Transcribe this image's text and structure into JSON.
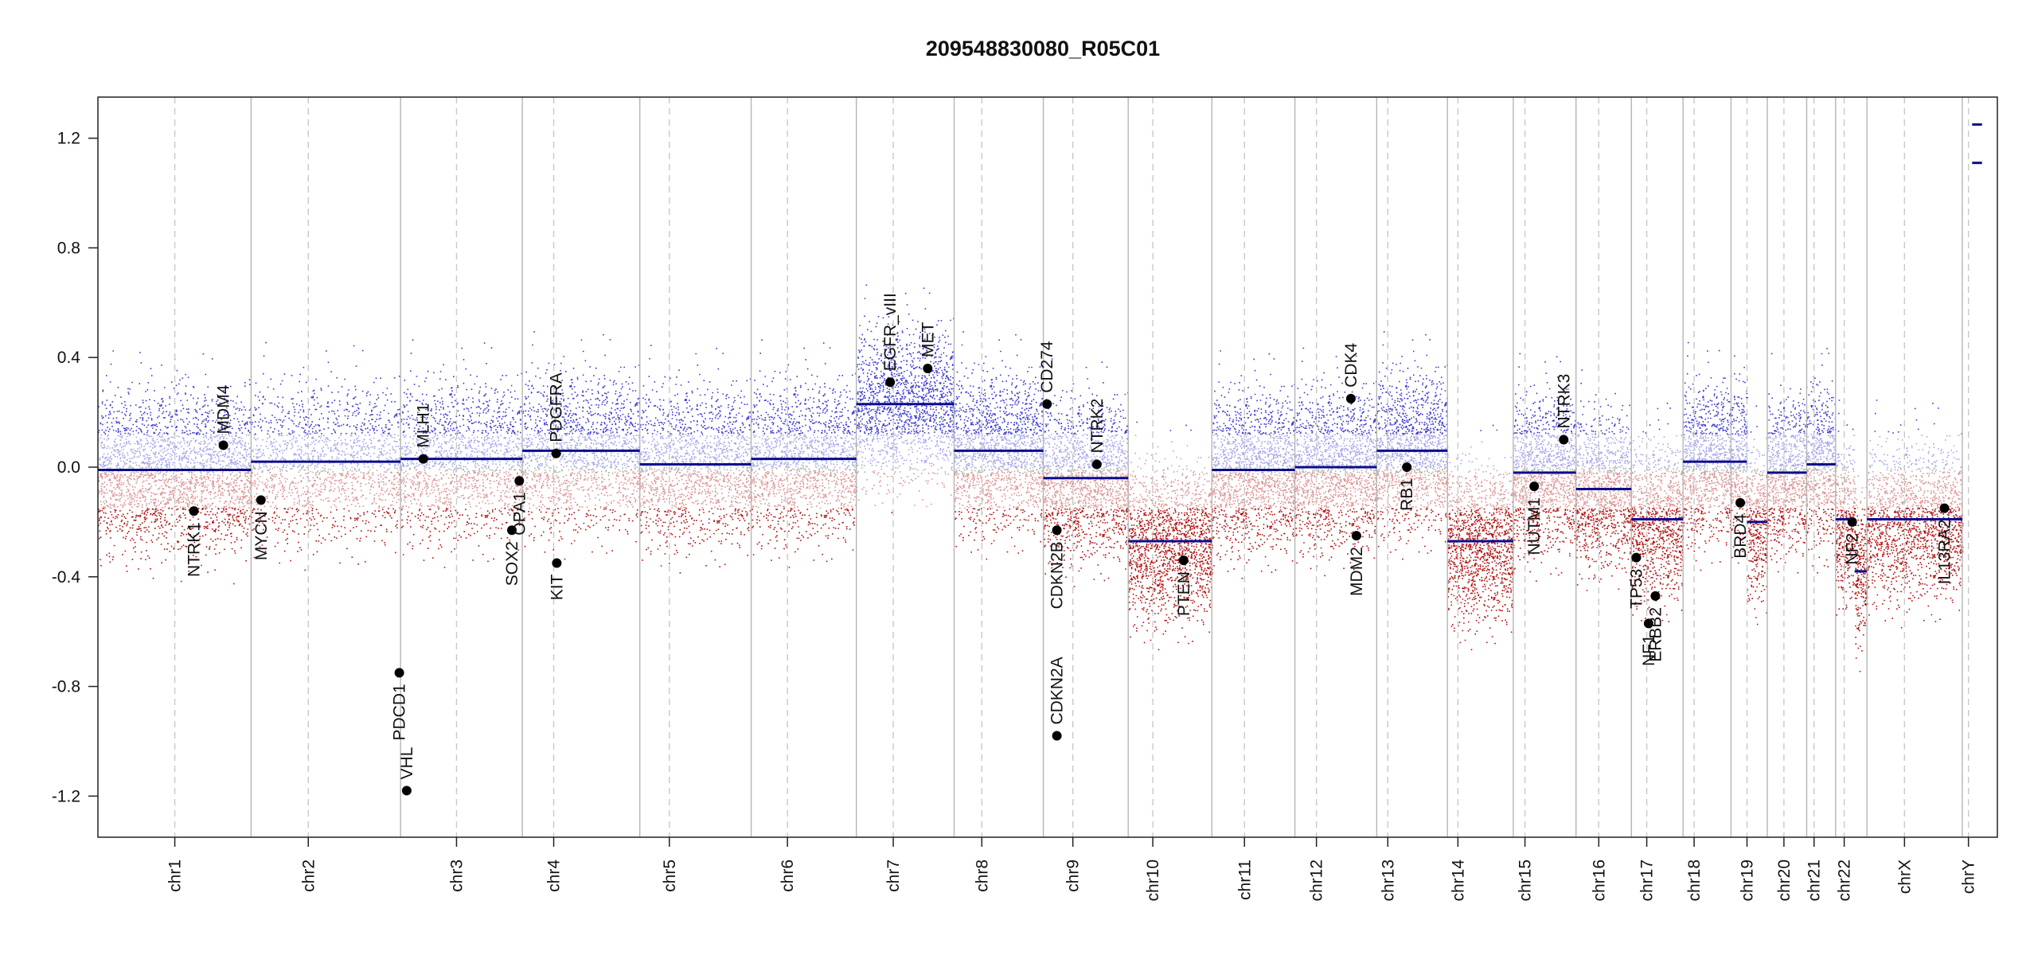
{
  "chart_data": {
    "type": "scatter",
    "title": "209548830080_R05C01",
    "xlabel": "",
    "ylabel": "",
    "ylim": [
      -1.35,
      1.35
    ],
    "yticks": [
      "1.2",
      "0.8",
      "0.4",
      "0.0",
      "-0.4",
      "-0.8",
      "-1.2"
    ],
    "ytick_values": [
      1.2,
      0.8,
      0.4,
      0.0,
      -0.4,
      -0.8,
      -1.2
    ],
    "grid": false,
    "colors": {
      "gain": "#3a3ad0",
      "loss": "#b01010",
      "neutral": "#a0a0a0",
      "segment": "#0b0b8c",
      "boundary": "#b5b5b5",
      "centromere": "#c8c8c8",
      "gene_point": "#000000"
    },
    "chromosomes": [
      {
        "name": "chr1",
        "start": 0,
        "end": 249,
        "centromere": 125,
        "segments": [
          {
            "from": 0,
            "to": 249,
            "value": -0.01
          }
        ]
      },
      {
        "name": "chr2",
        "start": 249,
        "end": 492,
        "centromere": 342,
        "segments": [
          {
            "from": 249,
            "to": 492,
            "value": 0.02
          }
        ]
      },
      {
        "name": "chr3",
        "start": 492,
        "end": 690,
        "centromere": 583,
        "segments": [
          {
            "from": 492,
            "to": 690,
            "value": 0.03
          }
        ]
      },
      {
        "name": "chr4",
        "start": 690,
        "end": 881,
        "centromere": 741,
        "segments": [
          {
            "from": 690,
            "to": 881,
            "value": 0.06
          }
        ]
      },
      {
        "name": "chr5",
        "start": 881,
        "end": 1062,
        "centromere": 929,
        "segments": [
          {
            "from": 881,
            "to": 1062,
            "value": 0.01
          }
        ]
      },
      {
        "name": "chr6",
        "start": 1062,
        "end": 1233,
        "centromere": 1121,
        "segments": [
          {
            "from": 1062,
            "to": 1233,
            "value": 0.03
          }
        ]
      },
      {
        "name": "chr7",
        "start": 1233,
        "end": 1392,
        "centromere": 1293,
        "segments": [
          {
            "from": 1233,
            "to": 1392,
            "value": 0.23
          }
        ]
      },
      {
        "name": "chr8",
        "start": 1392,
        "end": 1537,
        "centromere": 1437,
        "segments": [
          {
            "from": 1392,
            "to": 1537,
            "value": 0.06
          }
        ]
      },
      {
        "name": "chr9",
        "start": 1537,
        "end": 1675,
        "centromere": 1585,
        "segments": [
          {
            "from": 1537,
            "to": 1675,
            "value": -0.04
          }
        ]
      },
      {
        "name": "chr10",
        "start": 1675,
        "end": 1811,
        "centromere": 1715,
        "segments": [
          {
            "from": 1675,
            "to": 1811,
            "value": -0.27
          }
        ]
      },
      {
        "name": "chr11",
        "start": 1811,
        "end": 1946,
        "centromere": 1864,
        "segments": [
          {
            "from": 1811,
            "to": 1946,
            "value": -0.01
          }
        ]
      },
      {
        "name": "chr12",
        "start": 1946,
        "end": 2079,
        "centromere": 1981,
        "segments": [
          {
            "from": 1946,
            "to": 2079,
            "value": 0.0
          }
        ]
      },
      {
        "name": "chr13",
        "start": 2079,
        "end": 2194,
        "centromere": 2097,
        "segments": [
          {
            "from": 2079,
            "to": 2194,
            "value": 0.06
          }
        ]
      },
      {
        "name": "chr14",
        "start": 2194,
        "end": 2301,
        "centromere": 2211,
        "segments": [
          {
            "from": 2194,
            "to": 2301,
            "value": -0.27
          }
        ]
      },
      {
        "name": "chr15",
        "start": 2301,
        "end": 2403,
        "centromere": 2320,
        "segments": [
          {
            "from": 2301,
            "to": 2403,
            "value": -0.02
          }
        ]
      },
      {
        "name": "chr16",
        "start": 2403,
        "end": 2493,
        "centromere": 2440,
        "segments": [
          {
            "from": 2403,
            "to": 2493,
            "value": -0.08
          }
        ]
      },
      {
        "name": "chr17",
        "start": 2493,
        "end": 2577,
        "centromere": 2518,
        "segments": [
          {
            "from": 2493,
            "to": 2577,
            "value": -0.19
          }
        ]
      },
      {
        "name": "chr18",
        "start": 2577,
        "end": 2655,
        "centromere": 2595,
        "segments": [
          {
            "from": 2577,
            "to": 2655,
            "value": 0.02
          }
        ]
      },
      {
        "name": "chr19",
        "start": 2655,
        "end": 2714,
        "centromere": 2681,
        "segments": [
          {
            "from": 2655,
            "to": 2681,
            "value": 0.02
          },
          {
            "from": 2681,
            "to": 2714,
            "value": -0.2
          }
        ]
      },
      {
        "name": "chr20",
        "start": 2714,
        "end": 2778,
        "centromere": 2741,
        "segments": [
          {
            "from": 2714,
            "to": 2778,
            "value": -0.02
          }
        ]
      },
      {
        "name": "chr21",
        "start": 2778,
        "end": 2825,
        "centromere": 2790,
        "segments": [
          {
            "from": 2778,
            "to": 2825,
            "value": 0.01
          }
        ]
      },
      {
        "name": "chr22",
        "start": 2825,
        "end": 2876,
        "centromere": 2839,
        "segments": [
          {
            "from": 2825,
            "to": 2856,
            "value": -0.19
          },
          {
            "from": 2856,
            "to": 2876,
            "value": -0.38
          }
        ]
      },
      {
        "name": "chrX",
        "start": 2876,
        "end": 3031,
        "centromere": 2937,
        "segments": [
          {
            "from": 2876,
            "to": 3031,
            "value": -0.19
          }
        ]
      },
      {
        "name": "chrY",
        "start": 3031,
        "end": 3088,
        "centromere": 3041,
        "segments": [
          {
            "from": 3047,
            "to": 3063,
            "value": 1.25
          },
          {
            "from": 3047,
            "to": 3063,
            "value": 1.11
          }
        ]
      }
    ],
    "genes": [
      {
        "name": "NTRK1",
        "x": 156,
        "y": -0.16,
        "side": "below"
      },
      {
        "name": "MDM4",
        "x": 204,
        "y": 0.08,
        "side": "above"
      },
      {
        "name": "MYCN",
        "x": 265,
        "y": -0.12,
        "side": "below"
      },
      {
        "name": "PDCD1",
        "x": 490,
        "y": -0.75,
        "side": "below"
      },
      {
        "name": "VHL",
        "x": 502,
        "y": -1.18,
        "side": "above"
      },
      {
        "name": "MLH1",
        "x": 529,
        "y": 0.03,
        "side": "above"
      },
      {
        "name": "SOX2",
        "x": 673,
        "y": -0.23,
        "side": "below"
      },
      {
        "name": "OPA1",
        "x": 685,
        "y": -0.05,
        "side": "below"
      },
      {
        "name": "PDGFRA",
        "x": 745,
        "y": 0.05,
        "side": "above"
      },
      {
        "name": "KIT",
        "x": 746,
        "y": -0.35,
        "side": "below"
      },
      {
        "name": "EGFR_vIII",
        "x": 1288,
        "y": 0.31,
        "side": "above"
      },
      {
        "name": "MET",
        "x": 1349,
        "y": 0.36,
        "side": "above"
      },
      {
        "name": "CD274",
        "x": 1543,
        "y": 0.23,
        "side": "above"
      },
      {
        "name": "CDKN2B",
        "x": 1559,
        "y": -0.23,
        "side": "below"
      },
      {
        "name": "CDKN2A",
        "x": 1559,
        "y": -0.98,
        "side": "above"
      },
      {
        "name": "NTRK2",
        "x": 1624,
        "y": 0.01,
        "side": "above"
      },
      {
        "name": "PTEN",
        "x": 1765,
        "y": -0.34,
        "side": "below"
      },
      {
        "name": "CDK4",
        "x": 2037,
        "y": 0.25,
        "side": "above"
      },
      {
        "name": "MDM2",
        "x": 2046,
        "y": -0.25,
        "side": "below"
      },
      {
        "name": "RB1",
        "x": 2128,
        "y": 0.0,
        "side": "below"
      },
      {
        "name": "NUTM1",
        "x": 2335,
        "y": -0.07,
        "side": "below"
      },
      {
        "name": "NTRK3",
        "x": 2383,
        "y": 0.1,
        "side": "above"
      },
      {
        "name": "TP53",
        "x": 2501,
        "y": -0.33,
        "side": "below"
      },
      {
        "name": "NF1",
        "x": 2521,
        "y": -0.57,
        "side": "below"
      },
      {
        "name": "ERBB2",
        "x": 2532,
        "y": -0.47,
        "side": "below"
      },
      {
        "name": "BRD4",
        "x": 2670,
        "y": -0.13,
        "side": "below"
      },
      {
        "name": "NF2",
        "x": 2852,
        "y": -0.2,
        "side": "below"
      },
      {
        "name": "IL13RA2",
        "x": 3002,
        "y": -0.15,
        "side": "below"
      }
    ]
  }
}
